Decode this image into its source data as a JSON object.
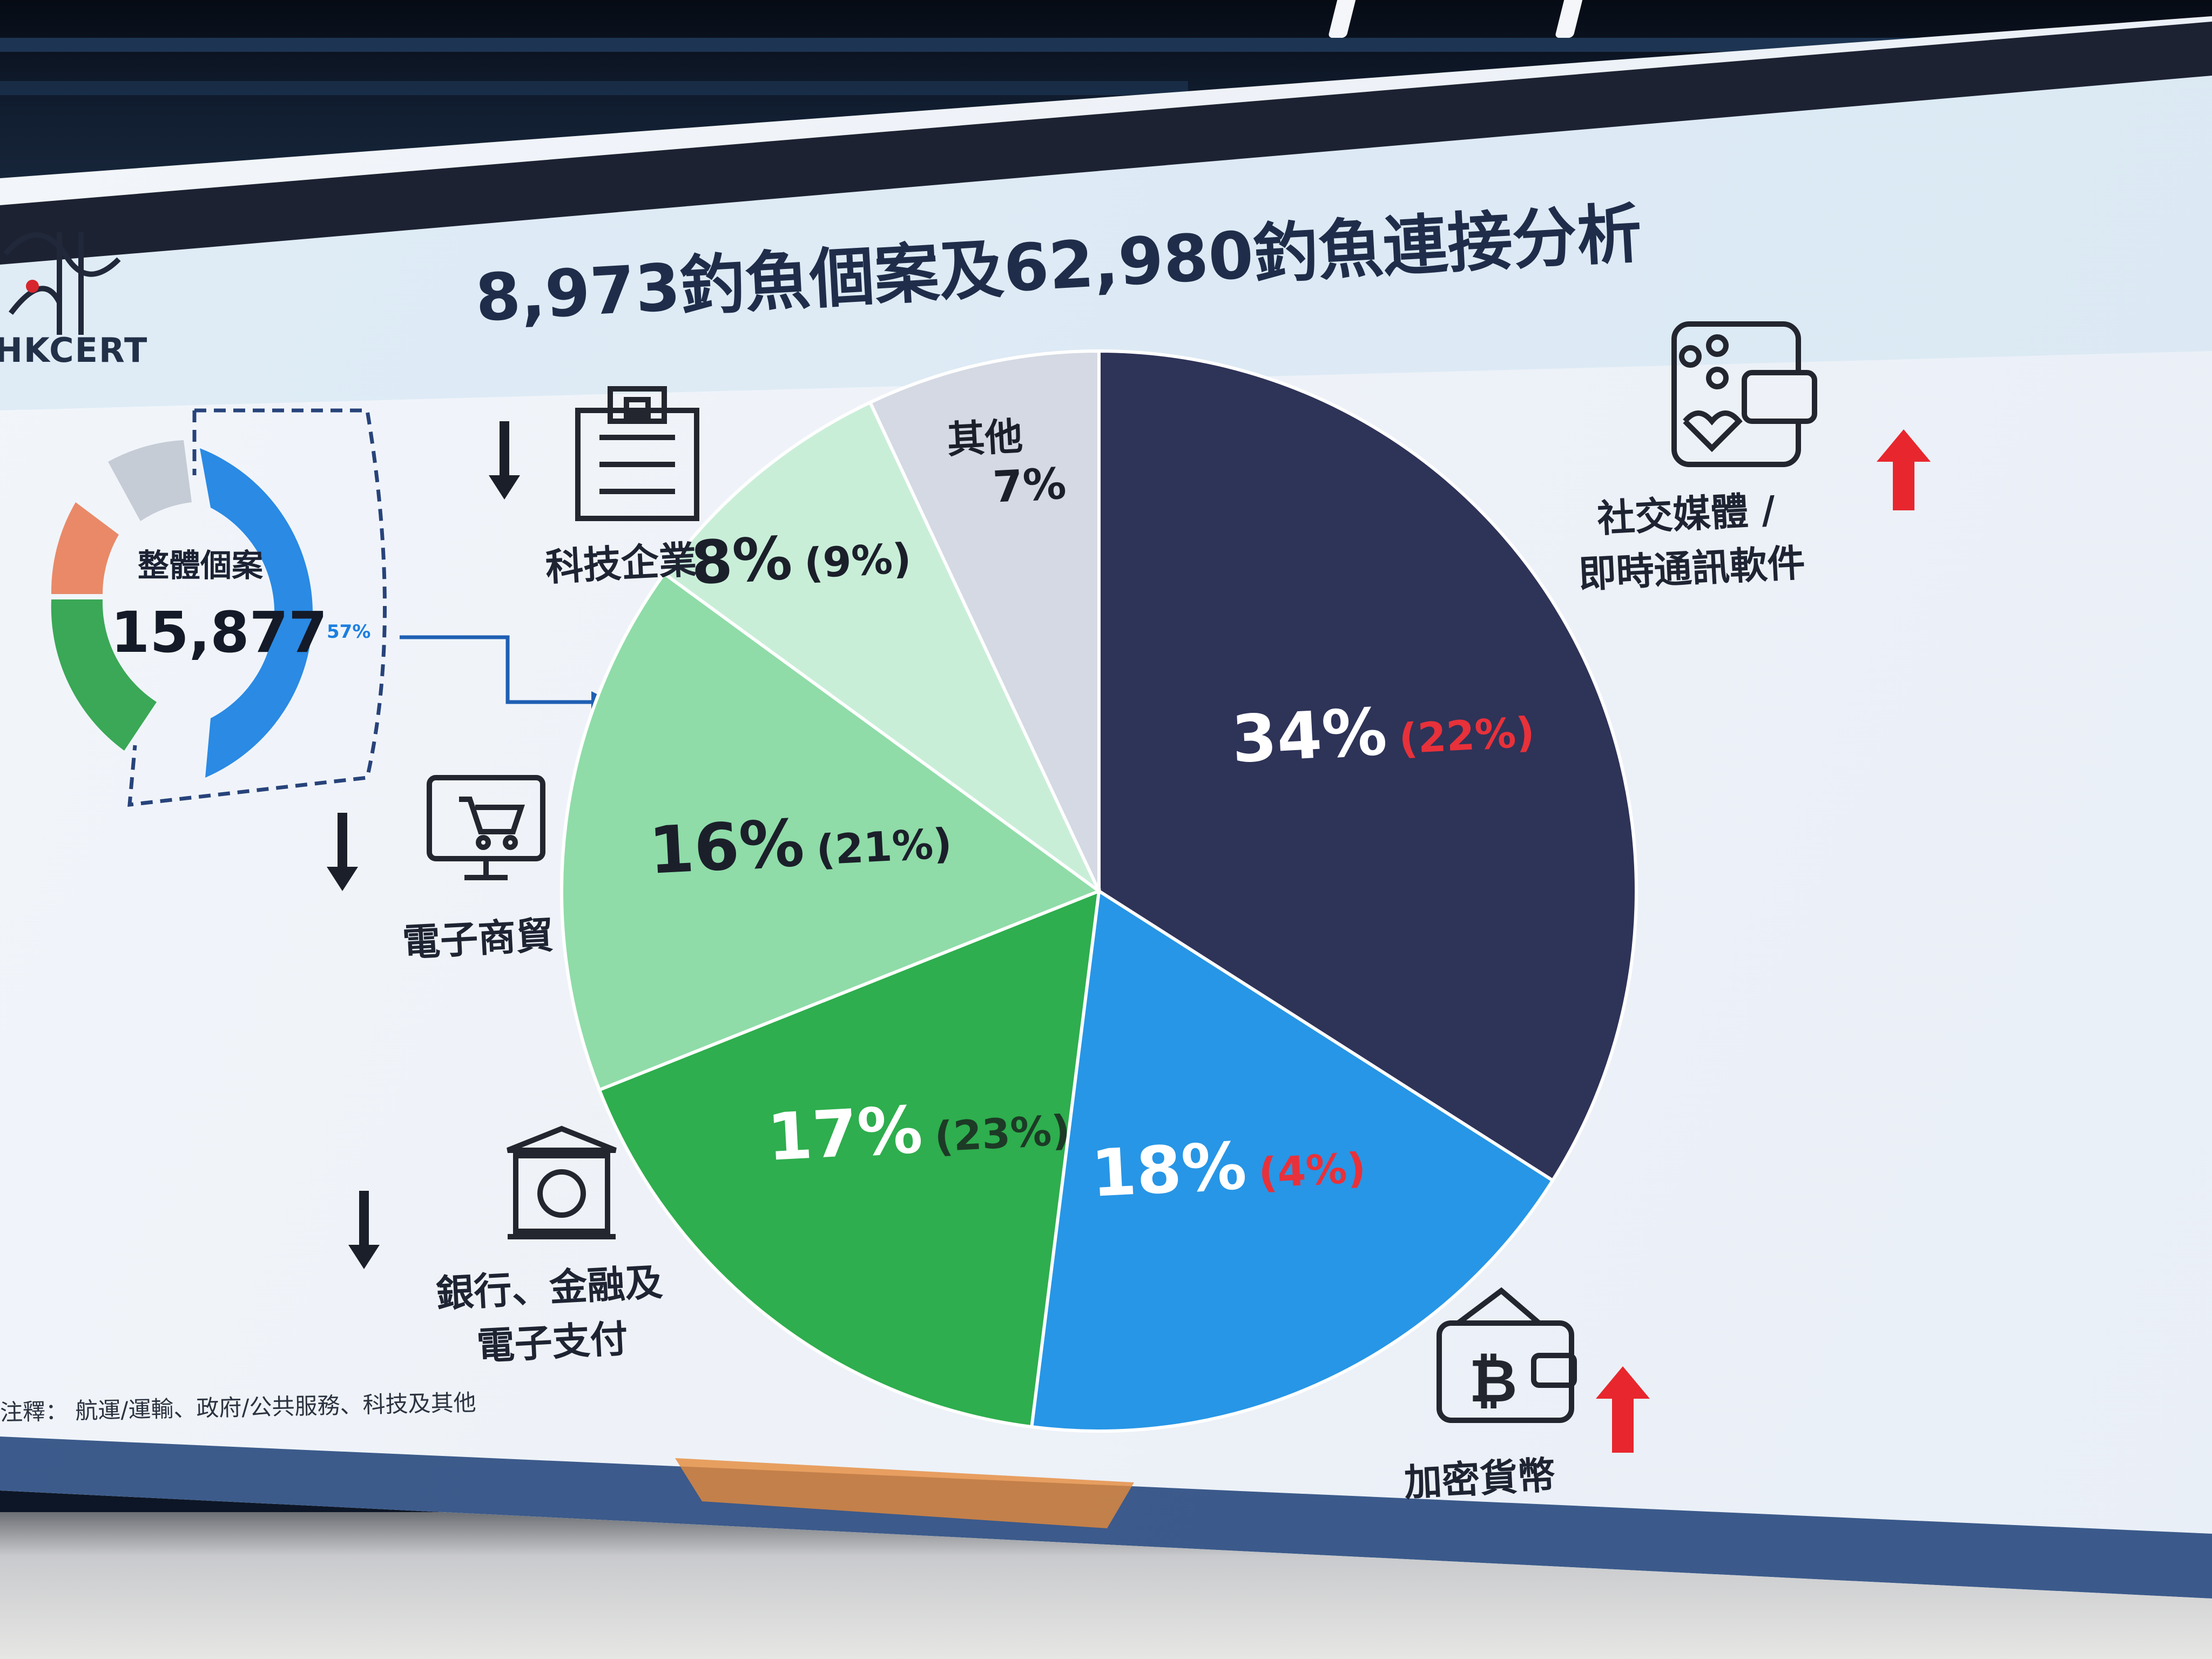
{
  "slide": {
    "title": "8,973釣魚個案及62,980釣魚連接分析",
    "logo_text": "HKCERT",
    "footnote": "注釋： 航運/運輸、政府/公共服務、科技及其他"
  },
  "overview": {
    "label": "整體個案",
    "value": "15,877",
    "highlight_pct": "57%"
  },
  "categories": {
    "social": "社交媒體 /",
    "social_line2": "即時通訊軟件",
    "crypto": "加密貨幣",
    "banking": "銀行、金融及",
    "banking_line2": "電子支付",
    "ecommerce": "電子商貿",
    "tech": "科技企業"
  },
  "chart_data": {
    "type": "pie",
    "title": "",
    "slices": [
      {
        "value": 34,
        "label": "34%",
        "secondary": "(22%)",
        "color": "#2e3358",
        "label_color": "#ffffff",
        "secondary_color": "#e8313a"
      },
      {
        "value": 18,
        "label": "18%",
        "secondary": "(4%)",
        "color": "#2796e6",
        "label_color": "#ffffff",
        "secondary_color": "#e8313a"
      },
      {
        "value": 17,
        "label": "17%",
        "secondary": "(23%)",
        "color": "#2eae4e",
        "label_color": "#ffffff",
        "secondary_color": "#1d3a26"
      },
      {
        "value": 16,
        "label": "16%",
        "secondary": "(21%)",
        "color": "#8fdca8",
        "label_color": "#1b1f2a",
        "secondary_color": "#1b1f2a"
      },
      {
        "value": 8,
        "label": "8%",
        "secondary": "(9%)",
        "color": "#c9eed8",
        "label_color": "#1b1f2a",
        "secondary_color": "#1b1f2a"
      },
      {
        "value": 7,
        "label": "7%",
        "secondary": "其他",
        "color": "#d4d9e3",
        "label_color": "#1b1f2a",
        "secondary_color": "#1b1f2a"
      }
    ]
  },
  "colors": {
    "accent_red": "#e8313a",
    "navy": "#2e3358",
    "blue": "#2796e6",
    "title": "#1f2d4a"
  },
  "icons": [
    "chat-phone-icon",
    "building-icon",
    "shopping-cart-monitor-icon",
    "bank-dollar-icon",
    "bitcoin-wallet-icon",
    "down-arrow-icon",
    "up-arrow-icon"
  ]
}
